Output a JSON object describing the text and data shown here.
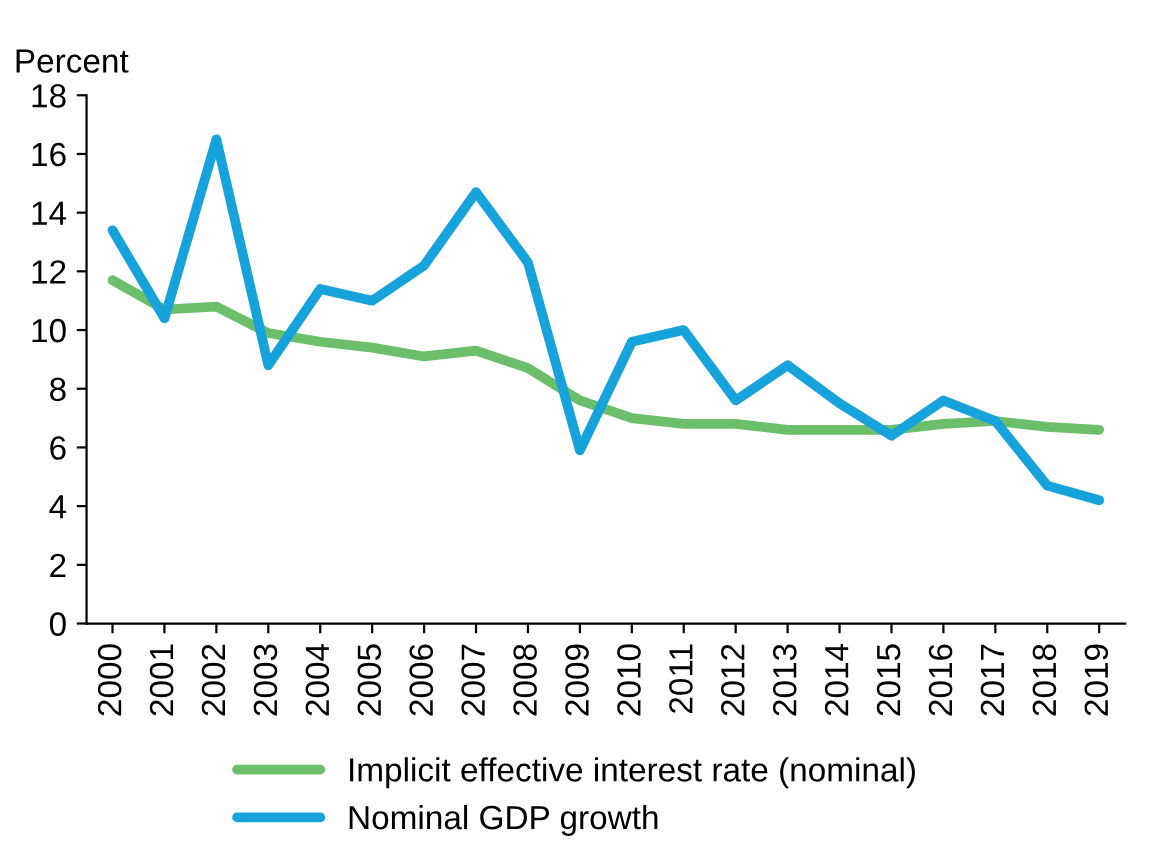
{
  "chart_data": {
    "type": "line",
    "ylabel": "Percent",
    "categories": [
      "2000",
      "2001",
      "2002",
      "2003",
      "2004",
      "2005",
      "2006",
      "2007",
      "2008",
      "2009",
      "2010",
      "2011",
      "2012",
      "2013",
      "2014",
      "2015",
      "2016",
      "2017",
      "2018",
      "2019"
    ],
    "series": [
      {
        "name": "Implicit effective interest rate (nominal)",
        "color": "#6cbf6a",
        "values": [
          11.7,
          10.7,
          10.8,
          9.9,
          9.6,
          9.4,
          9.1,
          9.3,
          8.7,
          7.6,
          7.0,
          6.8,
          6.8,
          6.6,
          6.6,
          6.6,
          6.8,
          6.9,
          6.7,
          6.6
        ]
      },
      {
        "name": "Nominal GDP growth",
        "color": "#16a3dc",
        "values": [
          13.4,
          10.4,
          16.5,
          8.8,
          11.4,
          11.0,
          12.2,
          14.7,
          12.3,
          5.9,
          9.6,
          10.0,
          7.6,
          8.8,
          7.5,
          6.4,
          7.6,
          6.9,
          4.7,
          4.2
        ]
      }
    ],
    "ylim": [
      0,
      18
    ],
    "yticks": [
      0,
      2,
      4,
      6,
      8,
      10,
      12,
      14,
      16,
      18
    ],
    "grid": false,
    "legend": "bottom",
    "marker": "none",
    "line_style": "solid"
  }
}
